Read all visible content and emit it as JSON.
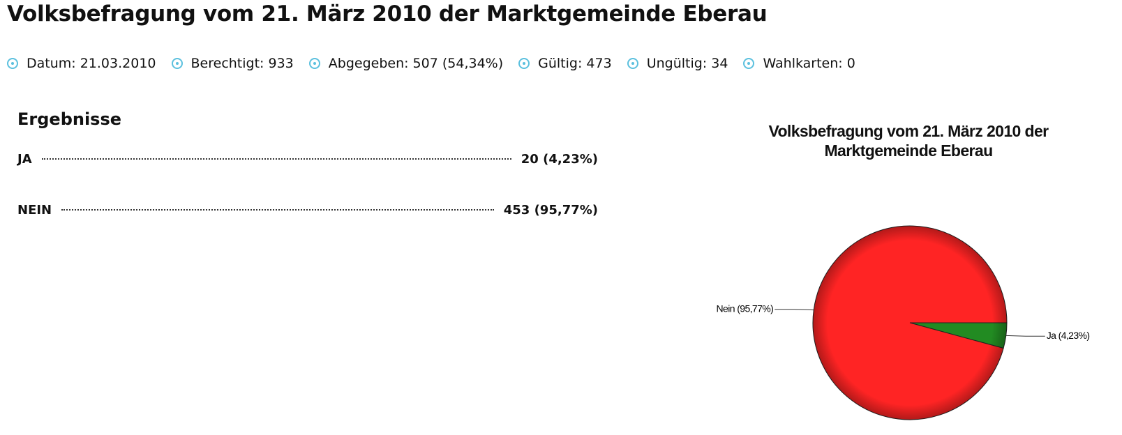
{
  "header": {
    "title": "Volksbefragung vom 21. März 2010 der Marktgemeinde Eberau"
  },
  "stats": [
    "Datum: 21.03.2010",
    "Berechtigt: 933",
    "Abgegeben: 507 (54,34%)",
    "Gültig: 473",
    "Ungültig: 34",
    "Wahlkarten: 0"
  ],
  "results": {
    "title": "Ergebnisse",
    "rows": [
      [
        "JA",
        "20 (4,23%)"
      ],
      [
        "NEIN",
        "453 (95,77%)"
      ]
    ]
  },
  "chart_data": {
    "type": "pie",
    "title": "Volksbefragung vom 21. März 2010 der Marktgemeinde Eberau",
    "categories": [
      "Ja (4,23%)",
      "Nein (95,77%)"
    ],
    "values": [
      4.23,
      95.77
    ],
    "colors": [
      "#228b22",
      "#ff2424"
    ]
  }
}
